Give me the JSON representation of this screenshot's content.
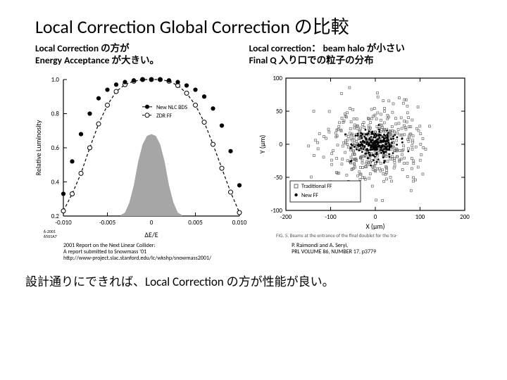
{
  "title": "Local Correction Global Correction の比較",
  "left_caption_l1": "Local Correction の方が",
  "left_caption_l2": "Energy Acceptance が大きい。",
  "right_caption_l1": "Local correction： beam halo が小さい",
  "right_caption_l2": "Final Q 入り口での粒子の分布",
  "footer": "設計通りにできれば、Local Correction の方が性能が良い。",
  "cite_left_l1": "2001 Report on the Next Linear Collider:",
  "cite_left_l2": "A report submitted to Snowmass '01",
  "cite_left_l3": "http://www-project.slac.stanford.edu/lc/wkshp/snowmass2001/",
  "cite_right_l1": "P. Raimondi and A. Seryi,",
  "cite_right_l2": "PRL VOLUME 86, NUMBER 17, p3779",
  "left_chart": {
    "type": "line+scatter+area",
    "xlabel": "ΔE/E",
    "ylabel": "Relative Luminosity",
    "xlim": [
      -0.01,
      0.01
    ],
    "ylim": [
      0.2,
      1.0
    ],
    "xticks": [
      -0.01,
      -0.005,
      0,
      0.005,
      0.01
    ],
    "yticks": [
      0.2,
      0.4,
      0.6,
      0.8,
      1.0
    ],
    "colors": {
      "axis": "#000000",
      "fill": "#a6a6a6",
      "bg": "#ffffff",
      "series1": "#000000",
      "series2": "#000000"
    },
    "line_width": 1.2,
    "marker_size": 4.2,
    "legend": [
      {
        "label": "New NLC BDS",
        "marker": "filled-circle"
      },
      {
        "label": "ZDR FF",
        "marker": "open-circle"
      }
    ],
    "series_new_nlc": [
      [
        -0.01,
        0.33
      ],
      [
        -0.009,
        0.52
      ],
      [
        -0.008,
        0.68
      ],
      [
        -0.007,
        0.8
      ],
      [
        -0.006,
        0.89
      ],
      [
        -0.005,
        0.94
      ],
      [
        -0.004,
        0.97
      ],
      [
        -0.003,
        0.985
      ],
      [
        -0.002,
        0.995
      ],
      [
        -0.001,
        1.0
      ],
      [
        0.0,
        1.0
      ],
      [
        0.001,
        1.0
      ],
      [
        0.002,
        0.995
      ],
      [
        0.003,
        0.985
      ],
      [
        0.004,
        0.965
      ],
      [
        0.005,
        0.94
      ],
      [
        0.006,
        0.9
      ],
      [
        0.007,
        0.83
      ],
      [
        0.008,
        0.73
      ],
      [
        0.009,
        0.58
      ],
      [
        0.01,
        0.38
      ]
    ],
    "series_zdr": [
      [
        -0.01,
        0.23
      ],
      [
        -0.009,
        0.33
      ],
      [
        -0.008,
        0.45
      ],
      [
        -0.007,
        0.6
      ],
      [
        -0.006,
        0.74
      ],
      [
        -0.005,
        0.85
      ],
      [
        -0.004,
        0.93
      ],
      [
        -0.003,
        0.97
      ],
      [
        -0.002,
        0.99
      ],
      [
        -0.001,
        1.0
      ],
      [
        0.0,
        1.0
      ],
      [
        0.001,
        1.0
      ],
      [
        0.002,
        0.99
      ],
      [
        0.003,
        0.965
      ],
      [
        0.004,
        0.92
      ],
      [
        0.005,
        0.85
      ],
      [
        0.006,
        0.75
      ],
      [
        0.007,
        0.62
      ],
      [
        0.008,
        0.48
      ],
      [
        0.009,
        0.34
      ],
      [
        0.01,
        0.22
      ]
    ],
    "histogram": [
      [
        -0.0035,
        0.205
      ],
      [
        -0.003,
        0.22
      ],
      [
        -0.0025,
        0.28
      ],
      [
        -0.002,
        0.38
      ],
      [
        -0.0015,
        0.52
      ],
      [
        -0.001,
        0.62
      ],
      [
        -0.0005,
        0.67
      ],
      [
        0.0,
        0.68
      ],
      [
        0.0005,
        0.67
      ],
      [
        0.001,
        0.62
      ],
      [
        0.0015,
        0.52
      ],
      [
        0.002,
        0.38
      ],
      [
        0.0025,
        0.28
      ],
      [
        0.003,
        0.22
      ],
      [
        0.0035,
        0.205
      ]
    ],
    "axis_font": 9,
    "legend_font": 8,
    "corner_label": "6-2001\n6501A7"
  },
  "right_chart": {
    "type": "scatter",
    "xlabel": "X (μm)",
    "ylabel": "Y (μm)",
    "xlim": [
      -200,
      200
    ],
    "ylim": [
      -100,
      100
    ],
    "xticks": [
      -200,
      -100,
      0,
      100,
      200
    ],
    "yticks": [
      -100,
      -50,
      0,
      50,
      100
    ],
    "colors": {
      "axis": "#000000",
      "bg": "#ffffff",
      "trad": "#666666",
      "new": "#000000"
    },
    "marker_size_trad": 3.0,
    "marker_size_new": 2.2,
    "legend": [
      {
        "label": "Traditional FF",
        "marker": "open-square"
      },
      {
        "label": "New FF",
        "marker": "filled-circle"
      }
    ],
    "axis_font": 9,
    "legend_font": 8,
    "fig_label": "FIG. 5.  Beams at the entrance of the final doublet for the tra-",
    "n_trad": 420,
    "n_new": 260,
    "sigma_trad_x": 55,
    "sigma_trad_y": 28,
    "sigma_new_x": 22,
    "sigma_new_y": 11
  }
}
